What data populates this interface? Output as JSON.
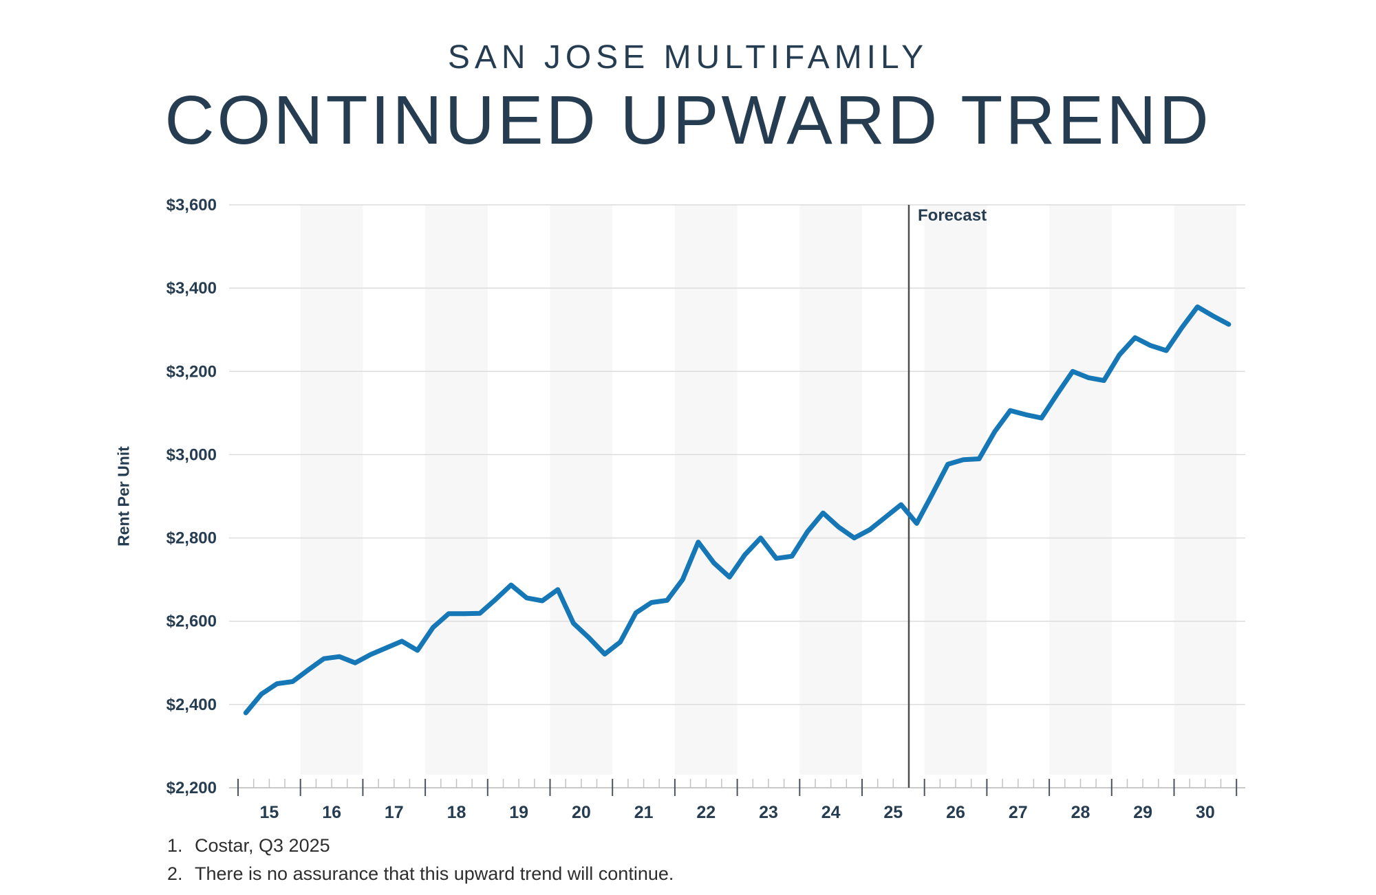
{
  "header": {
    "subtitle": "SAN JOSE MULTIFAMILY",
    "title": "CONTINUED UPWARD TREND"
  },
  "chart_data": {
    "type": "line",
    "title": "San Jose Multifamily Rent Per Unit, quarterly, actual through Q3 2025 then forecast",
    "xlabel": "",
    "ylabel": "Rent Per Unit",
    "x_axis": {
      "years": [
        "15",
        "16",
        "17",
        "18",
        "19",
        "20",
        "21",
        "22",
        "23",
        "24",
        "25",
        "26",
        "27",
        "28",
        "29",
        "30"
      ],
      "frequency": "quarterly",
      "minor_ticks_per_year": 4
    },
    "y_axis": {
      "ylim": [
        2200,
        3600
      ],
      "ticks": [
        {
          "value": 2200,
          "label": "$2,200"
        },
        {
          "value": 2400,
          "label": "$2,400"
        },
        {
          "value": 2600,
          "label": "$2,600"
        },
        {
          "value": 2800,
          "label": "$2,800"
        },
        {
          "value": 3000,
          "label": "$3,000"
        },
        {
          "value": 3200,
          "label": "$3,200"
        },
        {
          "value": 3400,
          "label": "$3,400"
        },
        {
          "value": 3600,
          "label": "$3,600"
        }
      ]
    },
    "forecast": {
      "label": "Forecast",
      "start_index": 43,
      "start_period": "2025Q4"
    },
    "series": [
      {
        "name": "Rent Per Unit ($)",
        "x_first": "2015Q1",
        "x_last": "2030Q4",
        "x_step": "quarter",
        "values": [
          2380,
          2425,
          2450,
          2455,
          2483,
          2510,
          2515,
          2500,
          2520,
          2536,
          2552,
          2530,
          2585,
          2618,
          2618,
          2619,
          2652,
          2687,
          2656,
          2649,
          2676,
          2595,
          2560,
          2521,
          2550,
          2620,
          2645,
          2650,
          2700,
          2790,
          2740,
          2706,
          2760,
          2800,
          2751,
          2756,
          2815,
          2860,
          2826,
          2800,
          2820,
          2850,
          2880,
          2835,
          2905,
          2977,
          2988,
          2990,
          3055,
          3106,
          3096,
          3088,
          3145,
          3200,
          3185,
          3178,
          3240,
          3281,
          3262,
          3250,
          3305,
          3355,
          3333,
          3313
        ]
      }
    ],
    "legend": "none",
    "grid": "horizontal",
    "shaded_year_bands": "even years"
  },
  "colors": {
    "accent_blue": "#1577b5",
    "navy": "#263c50",
    "gridline": "#dcdcdc",
    "axis_line": "#c9c9c9",
    "band": "#f7f7f7",
    "tick_major": "#4b545e",
    "tick_minor": "#c2c2c2",
    "forecast_line": "#4d4d4d"
  },
  "footnotes": [
    {
      "num": "1.",
      "text": "Costar, Q3 2025"
    },
    {
      "num": "2.",
      "text": "There is no assurance that this upward trend will continue."
    }
  ]
}
